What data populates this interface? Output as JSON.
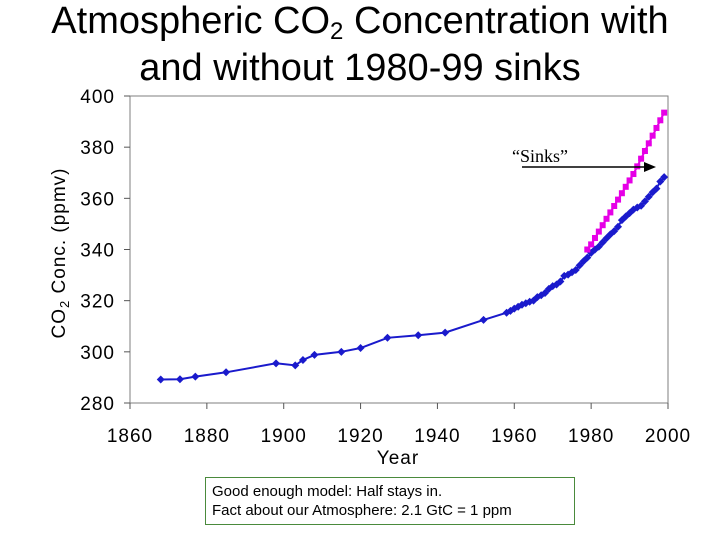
{
  "chart_data": {
    "type": "line",
    "title_main": "Atmospheric CO",
    "title_sub": "2",
    "title_rest": " Concentration with",
    "title_line2": "and without 1980-99 sinks",
    "ylabel_pre": "CO",
    "ylabel_sub": "2",
    "ylabel_post": " Conc. (ppmv)",
    "xlabel": "Year",
    "xlim": [
      1860,
      2000
    ],
    "ylim": [
      280,
      400
    ],
    "x_ticks": [
      "1860",
      "1880",
      "1900",
      "1920",
      "1940",
      "1960",
      "1980",
      "2000"
    ],
    "y_ticks": [
      "280",
      "300",
      "320",
      "340",
      "360",
      "380",
      "400"
    ],
    "annotation": "“Sinks”",
    "series": [
      {
        "color": "#1a1acc",
        "points": [
          [
            1868,
            289.2
          ],
          [
            1873,
            289.3
          ],
          [
            1877,
            290.3
          ],
          [
            1885,
            292
          ],
          [
            1898,
            295.5
          ],
          [
            1903,
            294.7
          ],
          [
            1905,
            296.8
          ],
          [
            1908,
            298.8
          ],
          [
            1915,
            300
          ],
          [
            1920,
            301.5
          ],
          [
            1927,
            305.5
          ],
          [
            1935,
            306.5
          ],
          [
            1942,
            307.5
          ],
          [
            1952,
            312.5
          ],
          [
            1958,
            315.3
          ],
          [
            1959,
            316
          ],
          [
            1960,
            316.9
          ],
          [
            1961,
            317.6
          ],
          [
            1962,
            318.4
          ],
          [
            1963,
            319
          ],
          [
            1964,
            319.6
          ],
          [
            1965,
            320
          ],
          [
            1966,
            321.4
          ],
          [
            1967,
            322.1
          ],
          [
            1968,
            323
          ],
          [
            1969,
            324.6
          ],
          [
            1970,
            325.7
          ],
          [
            1971,
            326.3
          ],
          [
            1972,
            327.5
          ],
          [
            1973,
            329.7
          ],
          [
            1974,
            330.2
          ],
          [
            1975,
            331.1
          ],
          [
            1976,
            332
          ],
          [
            1977,
            333.8
          ],
          [
            1978,
            335.4
          ],
          [
            1979,
            336.8
          ],
          [
            1980,
            338.7
          ],
          [
            1981,
            340
          ],
          [
            1982,
            341.1
          ],
          [
            1983,
            342.8
          ],
          [
            1984,
            344.4
          ],
          [
            1985,
            345.9
          ],
          [
            1986,
            347.2
          ],
          [
            1987,
            348.9
          ],
          [
            1988,
            351.5
          ],
          [
            1989,
            352.9
          ],
          [
            1990,
            354.2
          ],
          [
            1991,
            355.6
          ],
          [
            1992,
            356.4
          ],
          [
            1993,
            357.1
          ],
          [
            1994,
            358.8
          ],
          [
            1995,
            360.6
          ],
          [
            1996,
            362.4
          ],
          [
            1997,
            363.8
          ],
          [
            1998,
            366.6
          ],
          [
            1999,
            368.3
          ]
        ]
      },
      {
        "color": "#e600e6",
        "points": [
          [
            1979,
            340
          ],
          [
            1980,
            342
          ],
          [
            1981,
            344.5
          ],
          [
            1982,
            347
          ],
          [
            1983,
            349.5
          ],
          [
            1984,
            352
          ],
          [
            1985,
            354.5
          ],
          [
            1986,
            357
          ],
          [
            1987,
            359.5
          ],
          [
            1988,
            362
          ],
          [
            1989,
            364.5
          ],
          [
            1990,
            367
          ],
          [
            1991,
            369.5
          ],
          [
            1992,
            372.5
          ],
          [
            1993,
            375.5
          ],
          [
            1994,
            378.5
          ],
          [
            1995,
            381.5
          ],
          [
            1996,
            384.5
          ],
          [
            1997,
            387.5
          ],
          [
            1998,
            390.5
          ],
          [
            1999,
            393.5
          ]
        ]
      }
    ]
  },
  "note": {
    "line1": "Good enough model: Half stays in.",
    "line2": "Fact about our Atmosphere: 2.1 GtC = 1 ppm"
  }
}
